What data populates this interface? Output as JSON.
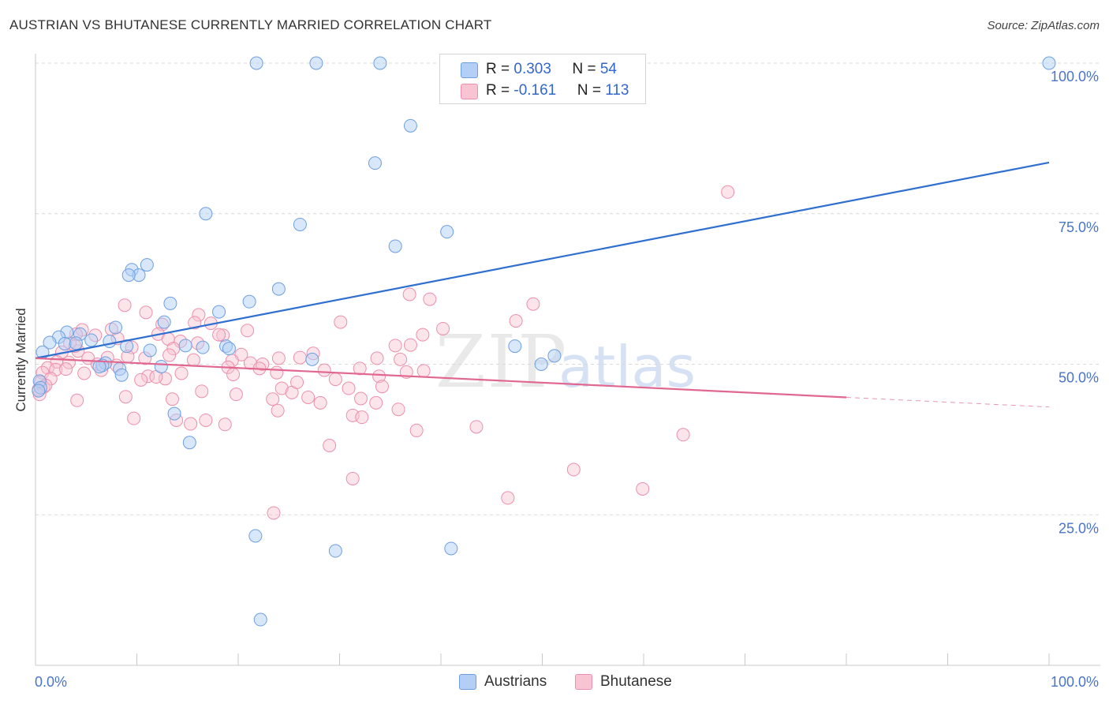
{
  "title": "AUSTRIAN VS BHUTANESE CURRENTLY MARRIED CORRELATION CHART",
  "source": "Source: ZipAtlas.com",
  "watermark": {
    "zip": "ZIP",
    "atlas": "atlas"
  },
  "legend_stats": [
    {
      "r_label": "R = ",
      "r_value": "0.303",
      "n_label": "N = ",
      "n_value": "54"
    },
    {
      "r_label": "R = ",
      "r_value": "-0.161",
      "n_label": "N = ",
      "n_value": "113"
    }
  ],
  "colors": {
    "austrians_fill": "#b3cff5",
    "austrians_stroke": "#6d9fe0",
    "austrians_line": "#2f6fd0",
    "bhutanese_fill": "#f8c3d3",
    "bhutanese_stroke": "#ec8fac",
    "bhutanese_line": "#e06890",
    "grid": "#d8d8d8",
    "tick_label": "#4a74c9"
  },
  "chart_data": {
    "type": "scatter",
    "title": "AUSTRIAN VS BHUTANESE CURRENTLY MARRIED CORRELATION CHART",
    "xlabel": "",
    "ylabel": "Currently Married",
    "xlim": [
      0,
      100
    ],
    "ylim": [
      0,
      100
    ],
    "x_tick_labels": [
      "0.0%",
      "100.0%"
    ],
    "y_ticks": [
      25,
      50,
      75,
      100
    ],
    "y_tick_labels": [
      "25.0%",
      "50.0%",
      "75.0%",
      "100.0%"
    ],
    "grid": true,
    "legend": "bottom-center",
    "series": [
      {
        "name": "Austrians",
        "R": 0.303,
        "N": 54,
        "trend": {
          "x": [
            0,
            100
          ],
          "y": [
            51,
            83.5
          ]
        },
        "points": [
          [
            21.8,
            100
          ],
          [
            27.7,
            100
          ],
          [
            34.0,
            100
          ],
          [
            100,
            100
          ],
          [
            37.0,
            89.6
          ],
          [
            33.5,
            83.4
          ],
          [
            16.8,
            75.0
          ],
          [
            26.1,
            73.2
          ],
          [
            35.5,
            69.6
          ],
          [
            40.6,
            72.0
          ],
          [
            11.0,
            66.5
          ],
          [
            9.5,
            65.7
          ],
          [
            10.2,
            64.8
          ],
          [
            9.2,
            64.8
          ],
          [
            24.0,
            62.5
          ],
          [
            21.1,
            60.4
          ],
          [
            13.3,
            60.1
          ],
          [
            18.1,
            58.7
          ],
          [
            12.7,
            57.0
          ],
          [
            7.9,
            56.1
          ],
          [
            3.1,
            55.3
          ],
          [
            4.4,
            55.0
          ],
          [
            2.3,
            54.5
          ],
          [
            5.5,
            54.0
          ],
          [
            7.3,
            53.8
          ],
          [
            1.4,
            53.6
          ],
          [
            2.9,
            53.4
          ],
          [
            4.0,
            53.5
          ],
          [
            9.0,
            53.0
          ],
          [
            14.8,
            53.1
          ],
          [
            18.8,
            53.0
          ],
          [
            19.1,
            52.6
          ],
          [
            16.5,
            52.8
          ],
          [
            11.3,
            52.3
          ],
          [
            0.7,
            52.0
          ],
          [
            47.3,
            53.0
          ],
          [
            51.2,
            51.4
          ],
          [
            49.9,
            50.0
          ],
          [
            27.3,
            50.8
          ],
          [
            6.9,
            50.2
          ],
          [
            6.6,
            49.8
          ],
          [
            12.4,
            49.6
          ],
          [
            8.3,
            49.2
          ],
          [
            8.5,
            48.2
          ],
          [
            0.4,
            47.2
          ],
          [
            0.5,
            46.1
          ],
          [
            0.3,
            45.6
          ],
          [
            13.7,
            41.8
          ],
          [
            15.2,
            37.0
          ],
          [
            21.7,
            21.5
          ],
          [
            29.6,
            19.0
          ],
          [
            41.0,
            19.4
          ],
          [
            22.2,
            7.6
          ],
          [
            6.3,
            49.6
          ]
        ]
      },
      {
        "name": "Bhutanese",
        "R": -0.161,
        "N": 113,
        "trend": {
          "x": [
            0,
            80
          ],
          "y": [
            51,
            44.5
          ]
        },
        "trend_dashed": {
          "x": [
            80,
            100
          ],
          "y": [
            44.5,
            42.9
          ]
        },
        "points": [
          [
            68.3,
            78.6
          ],
          [
            36.9,
            61.6
          ],
          [
            38.9,
            60.8
          ],
          [
            49.1,
            60.0
          ],
          [
            8.8,
            59.8
          ],
          [
            10.9,
            58.6
          ],
          [
            16.1,
            58.2
          ],
          [
            47.4,
            57.2
          ],
          [
            15.7,
            56.9
          ],
          [
            30.1,
            57.0
          ],
          [
            12.5,
            56.6
          ],
          [
            40.2,
            55.9
          ],
          [
            4.6,
            55.7
          ],
          [
            7.5,
            55.8
          ],
          [
            20.9,
            55.6
          ],
          [
            4.0,
            55.0
          ],
          [
            5.9,
            54.8
          ],
          [
            12.1,
            55.0
          ],
          [
            18.5,
            54.8
          ],
          [
            38.2,
            54.9
          ],
          [
            8.1,
            54.3
          ],
          [
            13.1,
            54.2
          ],
          [
            14.3,
            53.8
          ],
          [
            3.4,
            53.5
          ],
          [
            16.0,
            53.5
          ],
          [
            35.5,
            53.1
          ],
          [
            37.0,
            53.2
          ],
          [
            9.5,
            52.8
          ],
          [
            13.6,
            52.6
          ],
          [
            2.6,
            52.0
          ],
          [
            4.2,
            52.2
          ],
          [
            27.4,
            51.8
          ],
          [
            20.3,
            51.6
          ],
          [
            9.1,
            51.3
          ],
          [
            5.2,
            51.0
          ],
          [
            7.1,
            51.1
          ],
          [
            10.8,
            51.0
          ],
          [
            26.1,
            51.1
          ],
          [
            33.7,
            51.0
          ],
          [
            36.0,
            50.8
          ],
          [
            19.4,
            50.6
          ],
          [
            21.2,
            50.2
          ],
          [
            22.4,
            50.0
          ],
          [
            2.1,
            50.4
          ],
          [
            3.3,
            50.3
          ],
          [
            15.6,
            50.7
          ],
          [
            6.1,
            50.0
          ],
          [
            8.0,
            49.8
          ],
          [
            1.2,
            49.4
          ],
          [
            2.0,
            49.1
          ],
          [
            3.0,
            49.2
          ],
          [
            19.0,
            49.5
          ],
          [
            22.1,
            49.3
          ],
          [
            28.5,
            49.0
          ],
          [
            32.0,
            49.3
          ],
          [
            36.6,
            48.7
          ],
          [
            38.3,
            48.9
          ],
          [
            0.7,
            48.6
          ],
          [
            4.8,
            48.5
          ],
          [
            14.4,
            48.5
          ],
          [
            19.5,
            48.3
          ],
          [
            23.8,
            48.6
          ],
          [
            1.5,
            47.6
          ],
          [
            11.1,
            48.0
          ],
          [
            29.6,
            47.5
          ],
          [
            33.9,
            48.0
          ],
          [
            0.5,
            47.0
          ],
          [
            10.4,
            47.4
          ],
          [
            12.8,
            47.6
          ],
          [
            34.2,
            46.3
          ],
          [
            0.8,
            46.2
          ],
          [
            0.3,
            45.8
          ],
          [
            24.3,
            46.0
          ],
          [
            25.3,
            45.3
          ],
          [
            16.4,
            45.5
          ],
          [
            19.8,
            45.0
          ],
          [
            8.9,
            44.6
          ],
          [
            13.5,
            44.2
          ],
          [
            23.4,
            44.2
          ],
          [
            26.9,
            44.5
          ],
          [
            32.1,
            44.3
          ],
          [
            4.1,
            44.0
          ],
          [
            28.1,
            43.6
          ],
          [
            33.6,
            43.6
          ],
          [
            35.8,
            42.5
          ],
          [
            23.9,
            42.3
          ],
          [
            31.3,
            41.5
          ],
          [
            32.2,
            41.2
          ],
          [
            9.7,
            41.0
          ],
          [
            13.9,
            40.7
          ],
          [
            16.8,
            40.7
          ],
          [
            15.3,
            40.1
          ],
          [
            18.7,
            40.0
          ],
          [
            37.6,
            39.0
          ],
          [
            43.5,
            39.6
          ],
          [
            63.9,
            38.3
          ],
          [
            29.0,
            36.5
          ],
          [
            53.1,
            32.5
          ],
          [
            31.3,
            31.0
          ],
          [
            59.9,
            29.3
          ],
          [
            46.6,
            27.8
          ],
          [
            23.5,
            25.3
          ],
          [
            0.4,
            45.0
          ],
          [
            1.0,
            46.5
          ],
          [
            6.5,
            49.0
          ],
          [
            17.3,
            56.8
          ],
          [
            24.0,
            51.0
          ],
          [
            25.8,
            47.0
          ],
          [
            30.9,
            46.0
          ],
          [
            18.1,
            54.9
          ],
          [
            13.2,
            51.5
          ],
          [
            3.9,
            53.0
          ],
          [
            11.9,
            47.9
          ]
        ]
      }
    ]
  }
}
